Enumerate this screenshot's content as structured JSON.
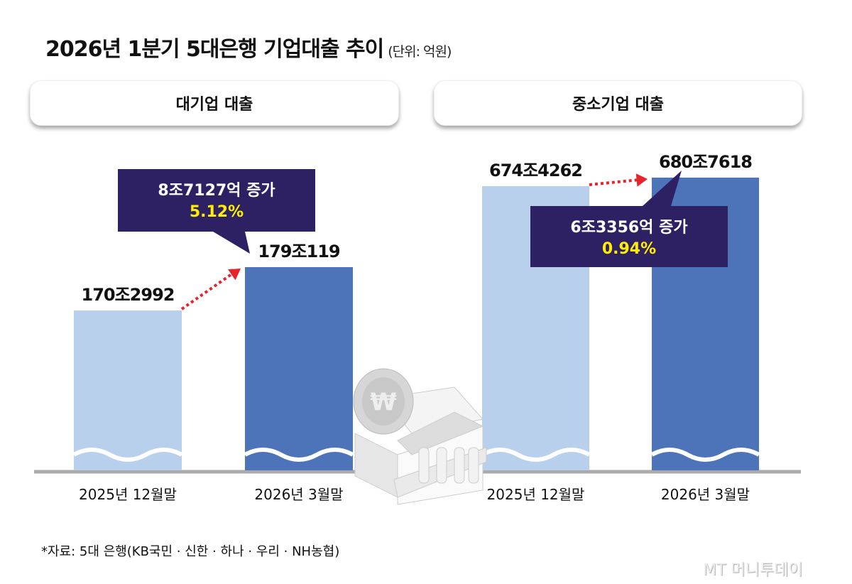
{
  "title": "2026년 1분기 5대은행 기업대출 추이",
  "unit": "(단위: 억원)",
  "source": "*자료: 5대 은행(KB국민 · 신한 · 하나 · 우리 · NH농협)",
  "watermark": "MT 머니투데이",
  "colors": {
    "prev": "#b9d0ec",
    "curr": "#4d74b9",
    "callout": "#2e2163",
    "highlight": "#ffee00",
    "arrow": "#e8232a"
  },
  "chart_data": [
    {
      "type": "bar",
      "title": "대기업 대출",
      "categories": [
        "2025년 12월말",
        "2026년 3월말"
      ],
      "values": [
        1702992,
        1790119
      ],
      "value_labels": [
        "170조2992",
        "179조119"
      ],
      "callout": {
        "change": "8조7127억 증가",
        "pct": "5.12%"
      },
      "axis_broken": true
    },
    {
      "type": "bar",
      "title": "중소기업 대출",
      "categories": [
        "2025년 12월말",
        "2026년 3월말"
      ],
      "values": [
        6744262,
        6807618
      ],
      "value_labels": [
        "674조4262",
        "680조7618"
      ],
      "callout": {
        "change": "6조3356억 증가",
        "pct": "0.94%"
      },
      "axis_broken": true
    }
  ]
}
